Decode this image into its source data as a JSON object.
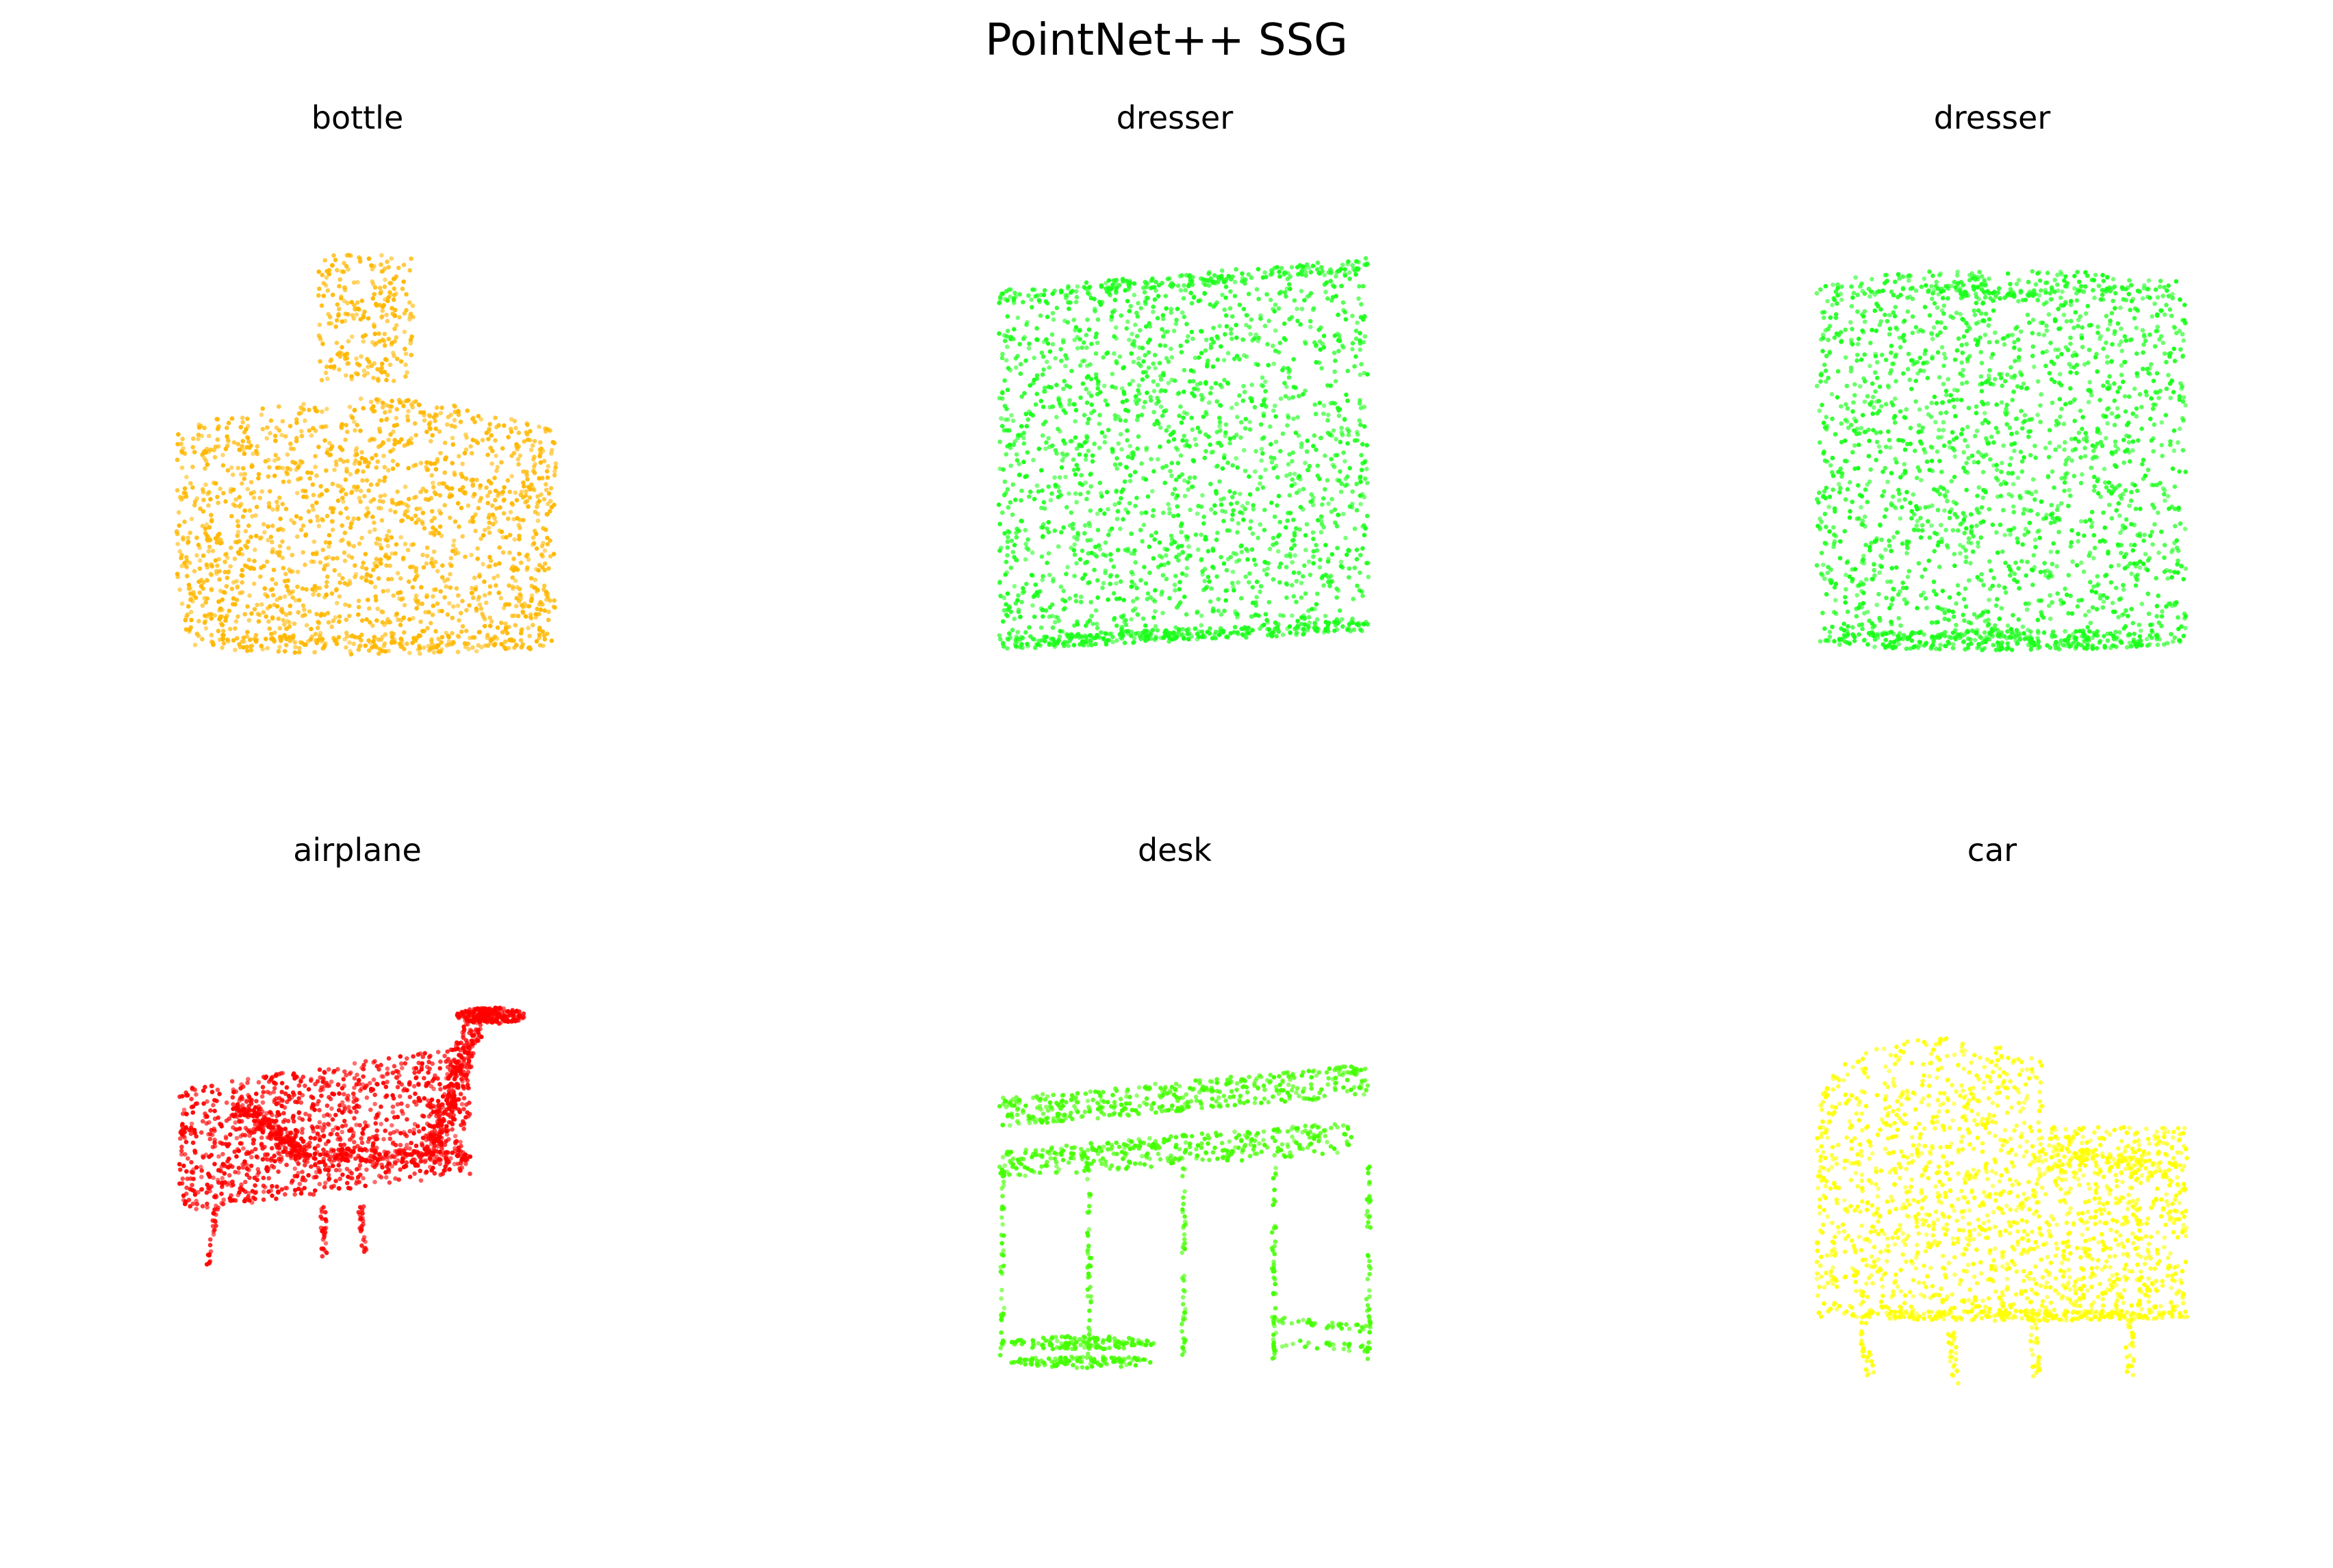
{
  "figure": {
    "title": "PointNet++ SSG"
  },
  "chart_data": [
    {
      "type": "scatter",
      "title": "bottle",
      "color": "#ffb700"
    },
    {
      "type": "scatter",
      "title": "dresser",
      "color": "#1aff1a"
    },
    {
      "type": "scatter",
      "title": "dresser",
      "color": "#1aff1a"
    },
    {
      "type": "scatter",
      "title": "airplane",
      "color": "#ff0000"
    },
    {
      "type": "scatter",
      "title": "desk",
      "color": "#44ff00"
    },
    {
      "type": "scatter",
      "title": "car",
      "color": "#ffff00"
    }
  ]
}
